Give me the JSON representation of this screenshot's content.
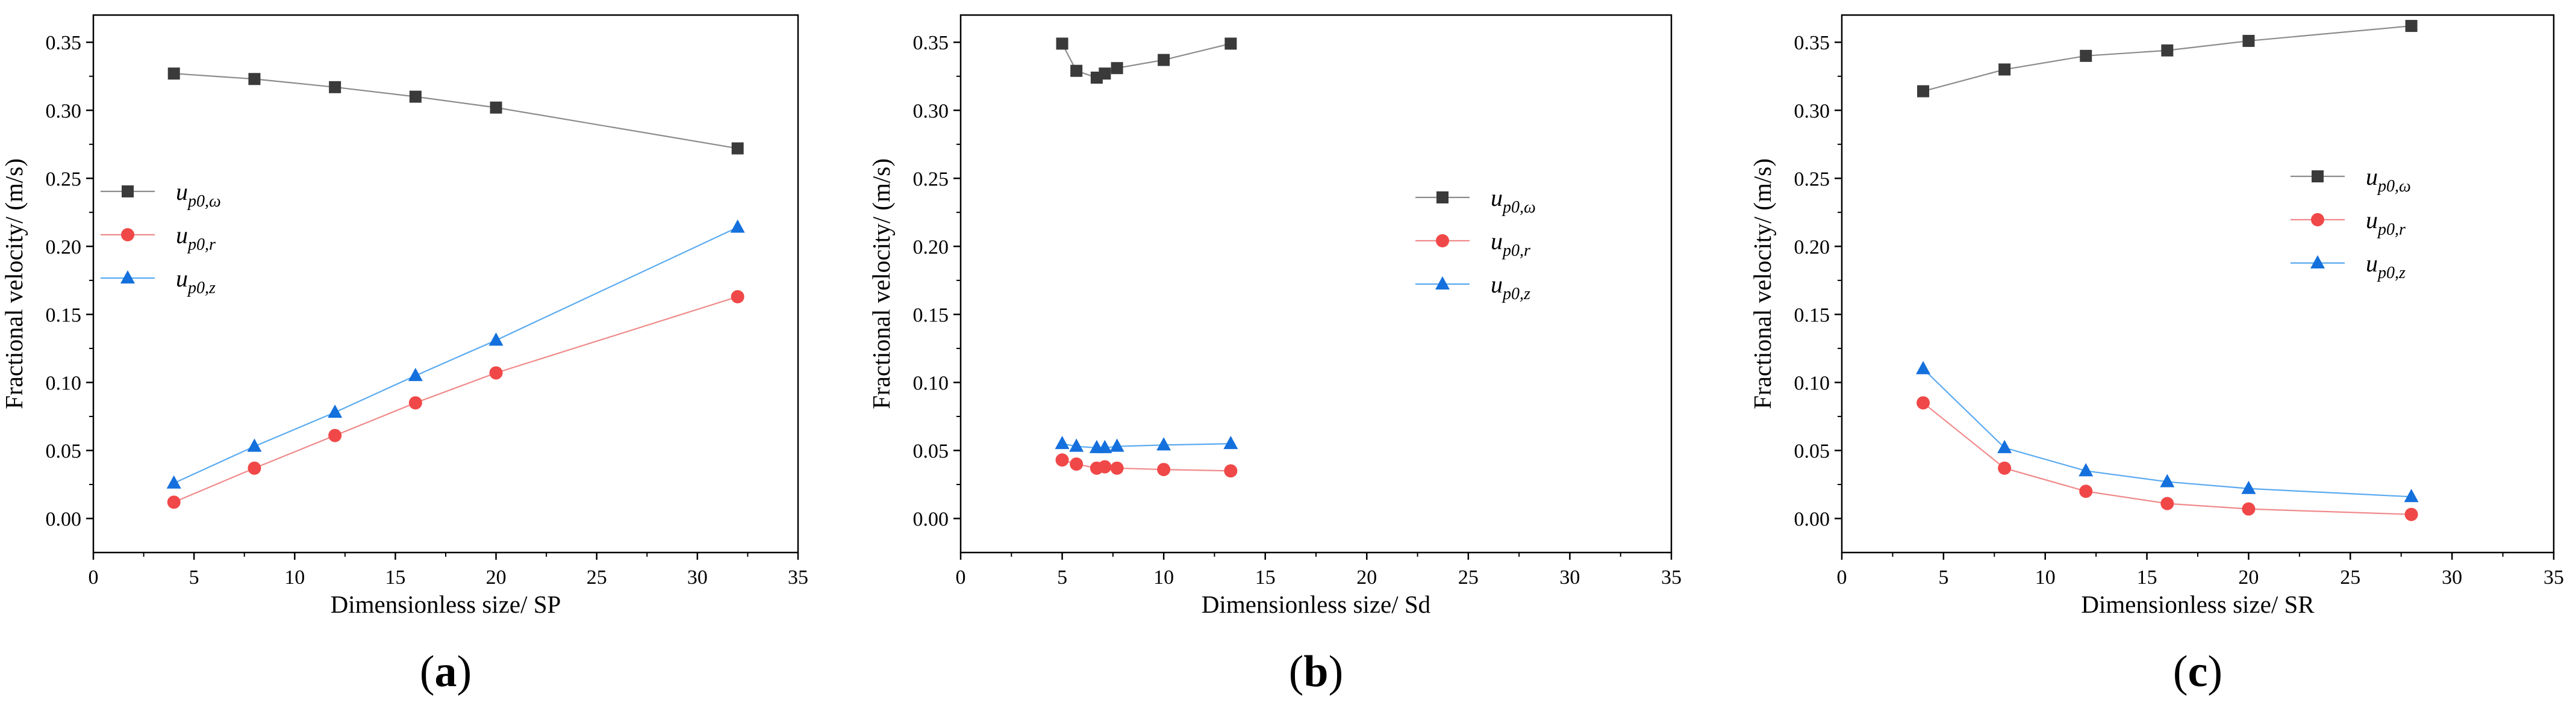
{
  "figure": {
    "panel_labels": [
      {
        "open": "(",
        "letter": "a",
        "close": ")"
      },
      {
        "open": "(",
        "letter": "b",
        "close": ")"
      },
      {
        "open": "(",
        "letter": "c",
        "close": ")"
      }
    ]
  },
  "colors": {
    "u_omega": "#3a3a3a",
    "u_omega_line": "#8c8c8c",
    "u_r": "#f04848",
    "u_r_line": "#f08a8a",
    "u_z": "#1470dc",
    "u_z_line": "#5aaaf0",
    "axis": "#000000"
  },
  "chart_data": [
    {
      "type": "line",
      "title": "",
      "xlabel": "Dimensionless size/ SP",
      "ylabel": "Fractional velocity/ (m/s)",
      "xlim": [
        0,
        35
      ],
      "ylim": [
        -0.025,
        0.37
      ],
      "xticks": [
        0,
        5,
        10,
        15,
        20,
        25,
        30,
        35
      ],
      "yticks": [
        0.0,
        0.05,
        0.1,
        0.15,
        0.2,
        0.25,
        0.3,
        0.35
      ],
      "xtick_labels": [
        "0",
        "5",
        "10",
        "15",
        "20",
        "25",
        "30",
        "35"
      ],
      "ytick_labels": [
        "0.00",
        "0.05",
        "0.10",
        "0.15",
        "0.20",
        "0.25",
        "0.30",
        "0.35"
      ],
      "legend_position": "middle-left",
      "series": [
        {
          "name": "u_p0,ω",
          "base": "u",
          "sub": "p0,ω",
          "marker": "square",
          "x": [
            4,
            8,
            12,
            16,
            20,
            32
          ],
          "values": [
            0.327,
            0.323,
            0.317,
            0.31,
            0.302,
            0.272
          ]
        },
        {
          "name": "u_p0,r",
          "base": "u",
          "sub": "p0,r",
          "marker": "circle",
          "x": [
            4,
            8,
            12,
            16,
            20,
            32
          ],
          "values": [
            0.012,
            0.037,
            0.061,
            0.085,
            0.107,
            0.163
          ]
        },
        {
          "name": "u_p0,z",
          "base": "u",
          "sub": "p0,z",
          "marker": "triangle",
          "x": [
            4,
            8,
            12,
            16,
            20,
            32
          ],
          "values": [
            0.026,
            0.053,
            0.078,
            0.105,
            0.131,
            0.214
          ]
        }
      ]
    },
    {
      "type": "line",
      "title": "",
      "xlabel": "Dimensionless size/ Sd",
      "ylabel": "Fractional velocity/ (m/s)",
      "xlim": [
        0,
        35
      ],
      "ylim": [
        -0.025,
        0.37
      ],
      "xticks": [
        0,
        5,
        10,
        15,
        20,
        25,
        30,
        35
      ],
      "yticks": [
        0.0,
        0.05,
        0.1,
        0.15,
        0.2,
        0.25,
        0.3,
        0.35
      ],
      "xtick_labels": [
        "0",
        "5",
        "10",
        "15",
        "20",
        "25",
        "30",
        "35"
      ],
      "ytick_labels": [
        "0.00",
        "0.05",
        "0.10",
        "0.15",
        "0.20",
        "0.25",
        "0.30",
        "0.35"
      ],
      "legend_position": "middle-right",
      "series": [
        {
          "name": "u_p0,ω",
          "base": "u",
          "sub": "p0,ω",
          "marker": "square",
          "x": [
            5.0,
            5.7,
            6.7,
            7.1,
            7.7,
            10.0,
            13.3
          ],
          "values": [
            0.349,
            0.329,
            0.324,
            0.327,
            0.331,
            0.337,
            0.349
          ]
        },
        {
          "name": "u_p0,r",
          "base": "u",
          "sub": "p0,r",
          "marker": "circle",
          "x": [
            5.0,
            5.7,
            6.7,
            7.1,
            7.7,
            10.0,
            13.3
          ],
          "values": [
            0.043,
            0.04,
            0.037,
            0.038,
            0.037,
            0.036,
            0.035
          ]
        },
        {
          "name": "u_p0,z",
          "base": "u",
          "sub": "p0,z",
          "marker": "triangle",
          "x": [
            5.0,
            5.7,
            6.7,
            7.1,
            7.7,
            10.0,
            13.3
          ],
          "values": [
            0.055,
            0.053,
            0.052,
            0.052,
            0.053,
            0.054,
            0.055
          ]
        }
      ]
    },
    {
      "type": "line",
      "title": "",
      "xlabel": "Dimensionless size/ SR",
      "ylabel": "Fractional velocity/ (m/s)",
      "xlim": [
        0,
        35
      ],
      "ylim": [
        -0.025,
        0.37
      ],
      "xticks": [
        0,
        5,
        10,
        15,
        20,
        25,
        30,
        35
      ],
      "yticks": [
        0.0,
        0.05,
        0.1,
        0.15,
        0.2,
        0.25,
        0.3,
        0.35
      ],
      "xtick_labels": [
        "0",
        "5",
        "10",
        "15",
        "20",
        "25",
        "30",
        "35"
      ],
      "ytick_labels": [
        "0.00",
        "0.05",
        "0.10",
        "0.15",
        "0.20",
        "0.25",
        "0.30",
        "0.35"
      ],
      "legend_position": "middle-right",
      "series": [
        {
          "name": "u_p0,ω",
          "base": "u",
          "sub": "p0,ω",
          "marker": "square",
          "x": [
            4,
            8,
            12,
            16,
            20,
            28
          ],
          "values": [
            0.314,
            0.33,
            0.34,
            0.344,
            0.351,
            0.362
          ]
        },
        {
          "name": "u_p0,r",
          "base": "u",
          "sub": "p0,r",
          "marker": "circle",
          "x": [
            4,
            8,
            12,
            16,
            20,
            28
          ],
          "values": [
            0.085,
            0.037,
            0.02,
            0.011,
            0.007,
            0.003
          ]
        },
        {
          "name": "u_p0,z",
          "base": "u",
          "sub": "p0,z",
          "marker": "triangle",
          "x": [
            4,
            8,
            12,
            16,
            20,
            28
          ],
          "values": [
            0.11,
            0.052,
            0.035,
            0.027,
            0.022,
            0.016
          ]
        }
      ]
    }
  ]
}
